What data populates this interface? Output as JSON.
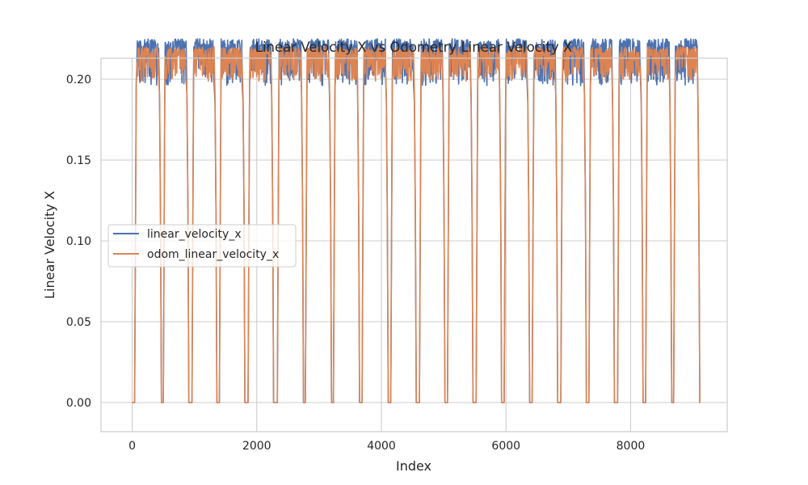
{
  "chart_data": {
    "type": "line",
    "title": "Linear Velocity X vs Odometry Linear Velocity X",
    "xlabel": "Index",
    "ylabel": "Linear Velocity X",
    "xlim": [
      -500,
      9550
    ],
    "ylim": [
      -0.018,
      0.213
    ],
    "xticks": [
      0,
      2000,
      4000,
      6000,
      8000
    ],
    "xtick_labels": [
      "0",
      "2000",
      "4000",
      "6000",
      "8000"
    ],
    "yticks": [
      0.0,
      0.05,
      0.1,
      0.15,
      0.2
    ],
    "ytick_labels": [
      "0.00",
      "0.05",
      "0.10",
      "0.15",
      "0.20"
    ],
    "grid": true,
    "legend_position": "center-left",
    "x_max_index": 9100,
    "cycles": [
      {
        "on": 40,
        "off": 440
      },
      {
        "on": 500,
        "off": 880
      },
      {
        "on": 960,
        "off": 1330
      },
      {
        "on": 1400,
        "off": 1780
      },
      {
        "on": 1860,
        "off": 2240
      },
      {
        "on": 2330,
        "off": 2720
      },
      {
        "on": 2780,
        "off": 3170
      },
      {
        "on": 3230,
        "off": 3620
      },
      {
        "on": 3690,
        "off": 4080
      },
      {
        "on": 4150,
        "off": 4530
      },
      {
        "on": 4610,
        "off": 4990
      },
      {
        "on": 5060,
        "off": 5440
      },
      {
        "on": 5520,
        "off": 5900
      },
      {
        "on": 5970,
        "off": 6350
      },
      {
        "on": 6420,
        "off": 6800
      },
      {
        "on": 6880,
        "off": 7260
      },
      {
        "on": 7330,
        "off": 7710
      },
      {
        "on": 7790,
        "off": 8170
      },
      {
        "on": 8240,
        "off": 8630
      },
      {
        "on": 8690,
        "off": 9080
      }
    ],
    "series": [
      {
        "name": "linear_velocity_x",
        "color": "#4c72b0",
        "cruise_high": 0.225,
        "cruise_low": 0.196,
        "idle": 0.0
      },
      {
        "name": "odom_linear_velocity_x",
        "color": "#dd8452",
        "cruise_high": 0.22,
        "cruise_low": 0.2,
        "idle": 0.0
      }
    ]
  }
}
